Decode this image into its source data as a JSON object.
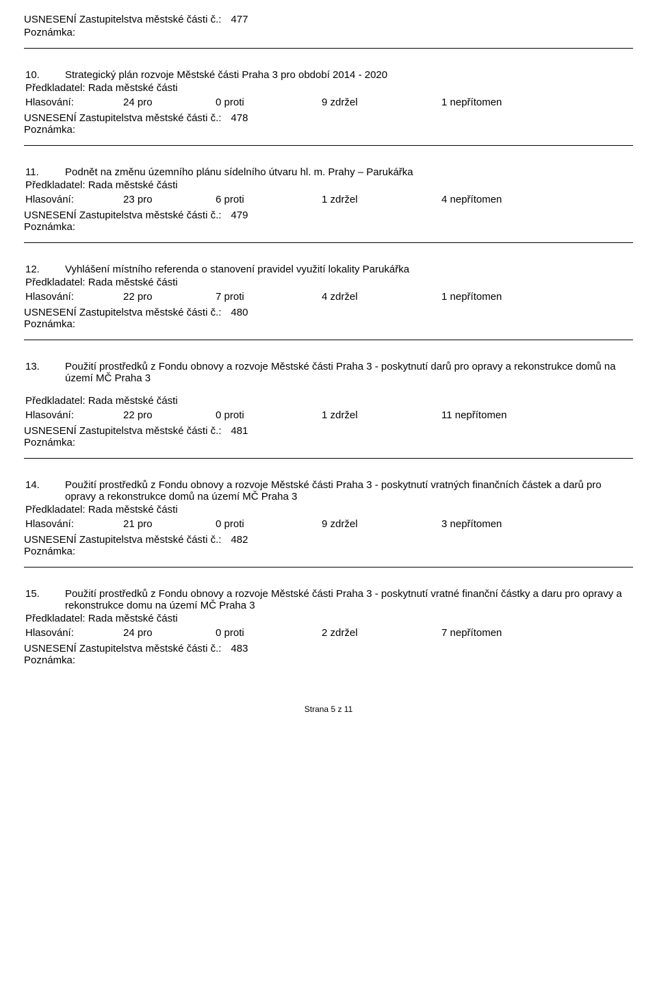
{
  "labels": {
    "usneseni": "USNESENÍ Zastupitelstva městské části č.:",
    "poznamka": "Poznámka:",
    "predkladatel": "Předkladatel: Rada městské části",
    "hlasovani": "Hlasování:",
    "footer": "Strana 5 z 11"
  },
  "top": {
    "num": "477"
  },
  "items": [
    {
      "n": "10.",
      "title": "Strategický plán rozvoje Městské části Praha 3 pro období 2014 - 2020",
      "pro": "24 pro",
      "proti": "0 proti",
      "zdrzel": "9 zdržel",
      "nepritomen": "1 nepřítomen",
      "usneseni": "478"
    },
    {
      "n": "11.",
      "title": "Podnět na změnu územního plánu sídelního útvaru hl. m. Prahy – Parukářka",
      "pro": "23 pro",
      "proti": "6 proti",
      "zdrzel": "1 zdržel",
      "nepritomen": "4 nepřítomen",
      "usneseni": "479"
    },
    {
      "n": "12.",
      "title": "Vyhlášení místního referenda o stanovení pravidel využití lokality Parukářka",
      "pro": "22 pro",
      "proti": "7 proti",
      "zdrzel": "4 zdržel",
      "nepritomen": "1 nepřítomen",
      "usneseni": "480"
    },
    {
      "n": "13.",
      "title": "Použití prostředků z Fondu obnovy a rozvoje Městské části Praha 3 - poskytnutí  darů pro opravy a rekonstrukce domů na území MČ Praha 3",
      "pro": "22 pro",
      "proti": "0 proti",
      "zdrzel": "1 zdržel",
      "nepritomen": "11 nepřítomen",
      "usneseni": "481",
      "extra_gap": true
    },
    {
      "n": "14.",
      "title": "Použití prostředků z Fondu obnovy a rozvoje Městské části Praha 3 - poskytnutí vratných  finančních  částek  a darů pro opravy a rekonstrukce domů na území MČ Praha 3",
      "pro": "21 pro",
      "proti": "0 proti",
      "zdrzel": "9 zdržel",
      "nepritomen": "3 nepřítomen",
      "usneseni": "482"
    },
    {
      "n": "15.",
      "title": "Použití prostředků z Fondu obnovy a rozvoje Městské části Praha 3 - poskytnutí vratné  finanční  částky  a  daru pro opravy a rekonstrukce domu na území MČ Praha 3",
      "pro": "24 pro",
      "proti": "0 proti",
      "zdrzel": "2 zdržel",
      "nepritomen": "7 nepřítomen",
      "usneseni": "483"
    }
  ]
}
